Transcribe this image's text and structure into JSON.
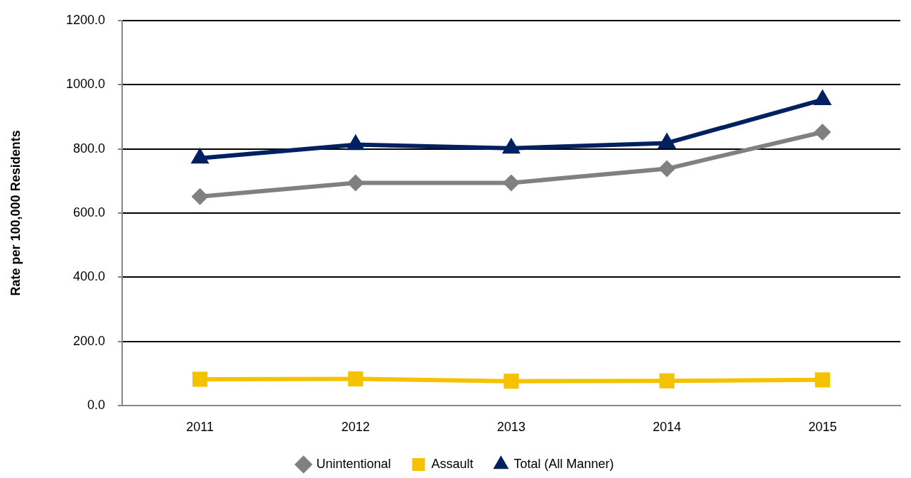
{
  "chart_data": {
    "type": "line",
    "ylabel": "Rate per 100,000 Residents",
    "categories": [
      "2011",
      "2012",
      "2013",
      "2014",
      "2015"
    ],
    "series": [
      {
        "name": "Unintentional",
        "color": "#808080",
        "marker": "diamond",
        "values": [
          651,
          694,
          694,
          738,
          852
        ]
      },
      {
        "name": "Assault",
        "color": "#f5c200",
        "marker": "square",
        "values": [
          82,
          83,
          76,
          77,
          80
        ]
      },
      {
        "name": "Total (All Manner)",
        "color": "#002060",
        "marker": "triangle",
        "values": [
          771,
          813,
          802,
          818,
          953
        ]
      }
    ],
    "ylim": [
      0,
      1200
    ],
    "yticks": [
      {
        "value": 0,
        "label": "0.0"
      },
      {
        "value": 200,
        "label": "200.0"
      },
      {
        "value": 400,
        "label": "400.0"
      },
      {
        "value": 600,
        "label": "600.0"
      },
      {
        "value": 800,
        "label": "800.0"
      },
      {
        "value": 1000,
        "label": "1000.0"
      },
      {
        "value": 1200,
        "label": "1200.0"
      }
    ],
    "grid": "y",
    "legend": "bottom"
  }
}
